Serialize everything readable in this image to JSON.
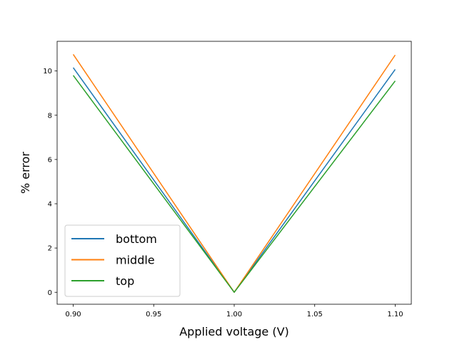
{
  "chart_data": {
    "type": "line",
    "xlabel": "Applied voltage (V)",
    "ylabel": "% error",
    "xlim": [
      0.89,
      1.11
    ],
    "ylim": [
      -0.54,
      11.34
    ],
    "xticks": [
      0.9,
      0.95,
      1.0,
      1.05,
      1.1
    ],
    "xtick_labels": [
      "0.90",
      "0.95",
      "1.00",
      "1.05",
      "1.10"
    ],
    "yticks": [
      0,
      2,
      4,
      6,
      8,
      10
    ],
    "ytick_labels": [
      "0",
      "2",
      "4",
      "6",
      "8",
      "10"
    ],
    "grid": false,
    "legend_position": "lower-left",
    "series": [
      {
        "name": "bottom",
        "color": "#1f77b4",
        "x": [
          0.9,
          1.0,
          1.1
        ],
        "y": [
          10.15,
          0.0,
          10.07
        ]
      },
      {
        "name": "middle",
        "color": "#ff7f0e",
        "x": [
          0.9,
          1.0,
          1.1
        ],
        "y": [
          10.75,
          0.0,
          10.72
        ]
      },
      {
        "name": "top",
        "color": "#2ca02c",
        "x": [
          0.9,
          1.0,
          1.1
        ],
        "y": [
          9.8,
          0.0,
          9.55
        ]
      }
    ]
  }
}
